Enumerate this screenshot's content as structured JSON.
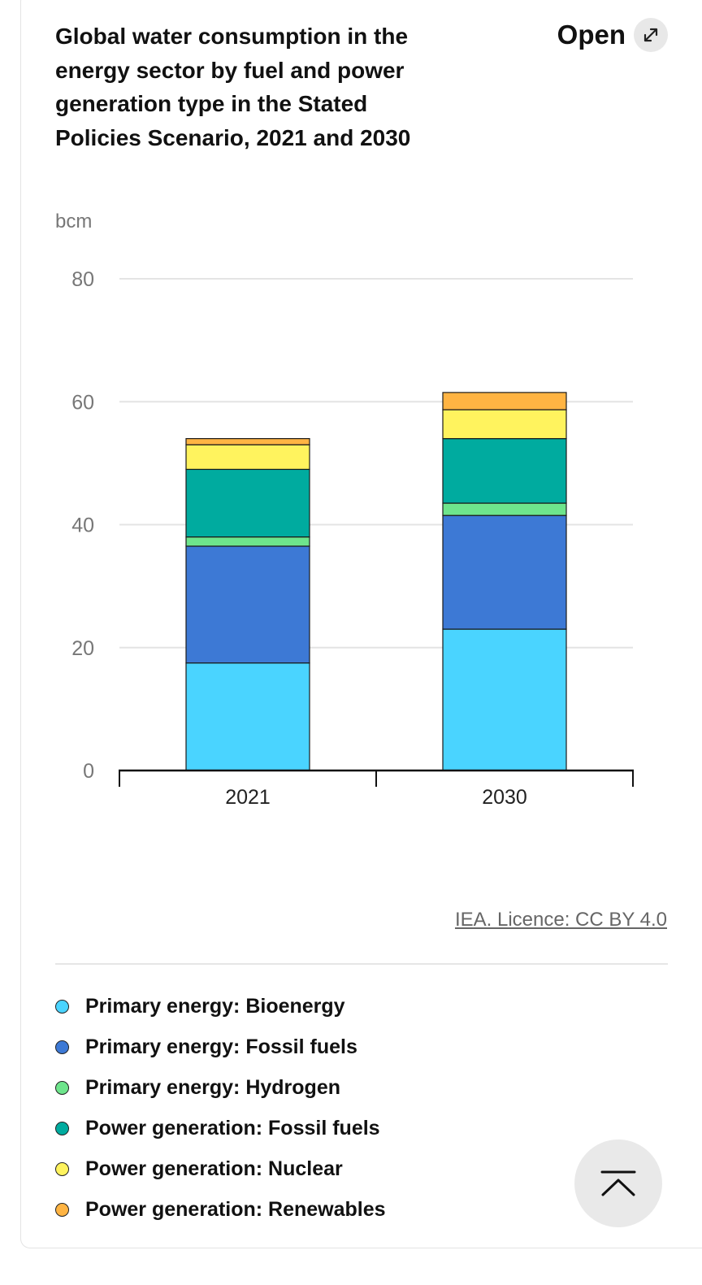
{
  "header": {
    "title": "Global water consumption in the energy sector by fuel and power generation type in the Stated Policies Scenario, 2021 and 2030",
    "open_label": "Open",
    "open_icon": "expand-arrow-icon"
  },
  "source": {
    "label": "IEA. Licence: CC BY 4.0"
  },
  "back_to_top": {
    "icon": "chevron-up-bar-icon"
  },
  "chart_data": {
    "type": "bar",
    "stacked": true,
    "title": "Global water consumption in the energy sector by fuel and power generation type in the Stated Policies Scenario, 2021 and 2030",
    "ylabel": "bcm",
    "xlabel": "",
    "ylim": [
      0,
      80
    ],
    "yticks": [
      0,
      20,
      40,
      60,
      80
    ],
    "categories": [
      "2021",
      "2030"
    ],
    "grid": true,
    "legend_position": "bottom",
    "series": [
      {
        "name": "Primary energy: Bioenergy",
        "color": "#4AD4FF",
        "values": [
          17.5,
          23.0
        ]
      },
      {
        "name": "Primary energy: Fossil fuels",
        "color": "#3D79D5",
        "values": [
          19.0,
          18.5
        ]
      },
      {
        "name": "Primary energy: Hydrogen",
        "color": "#6EE58C",
        "values": [
          1.5,
          2.0
        ]
      },
      {
        "name": "Power generation: Fossil fuels",
        "color": "#00AB9F",
        "values": [
          11.0,
          10.5
        ]
      },
      {
        "name": "Power generation: Nuclear",
        "color": "#FFF35E",
        "values": [
          4.0,
          4.7
        ]
      },
      {
        "name": "Power generation: Renewables",
        "color": "#FFB443",
        "values": [
          1.0,
          2.8
        ]
      }
    ]
  }
}
